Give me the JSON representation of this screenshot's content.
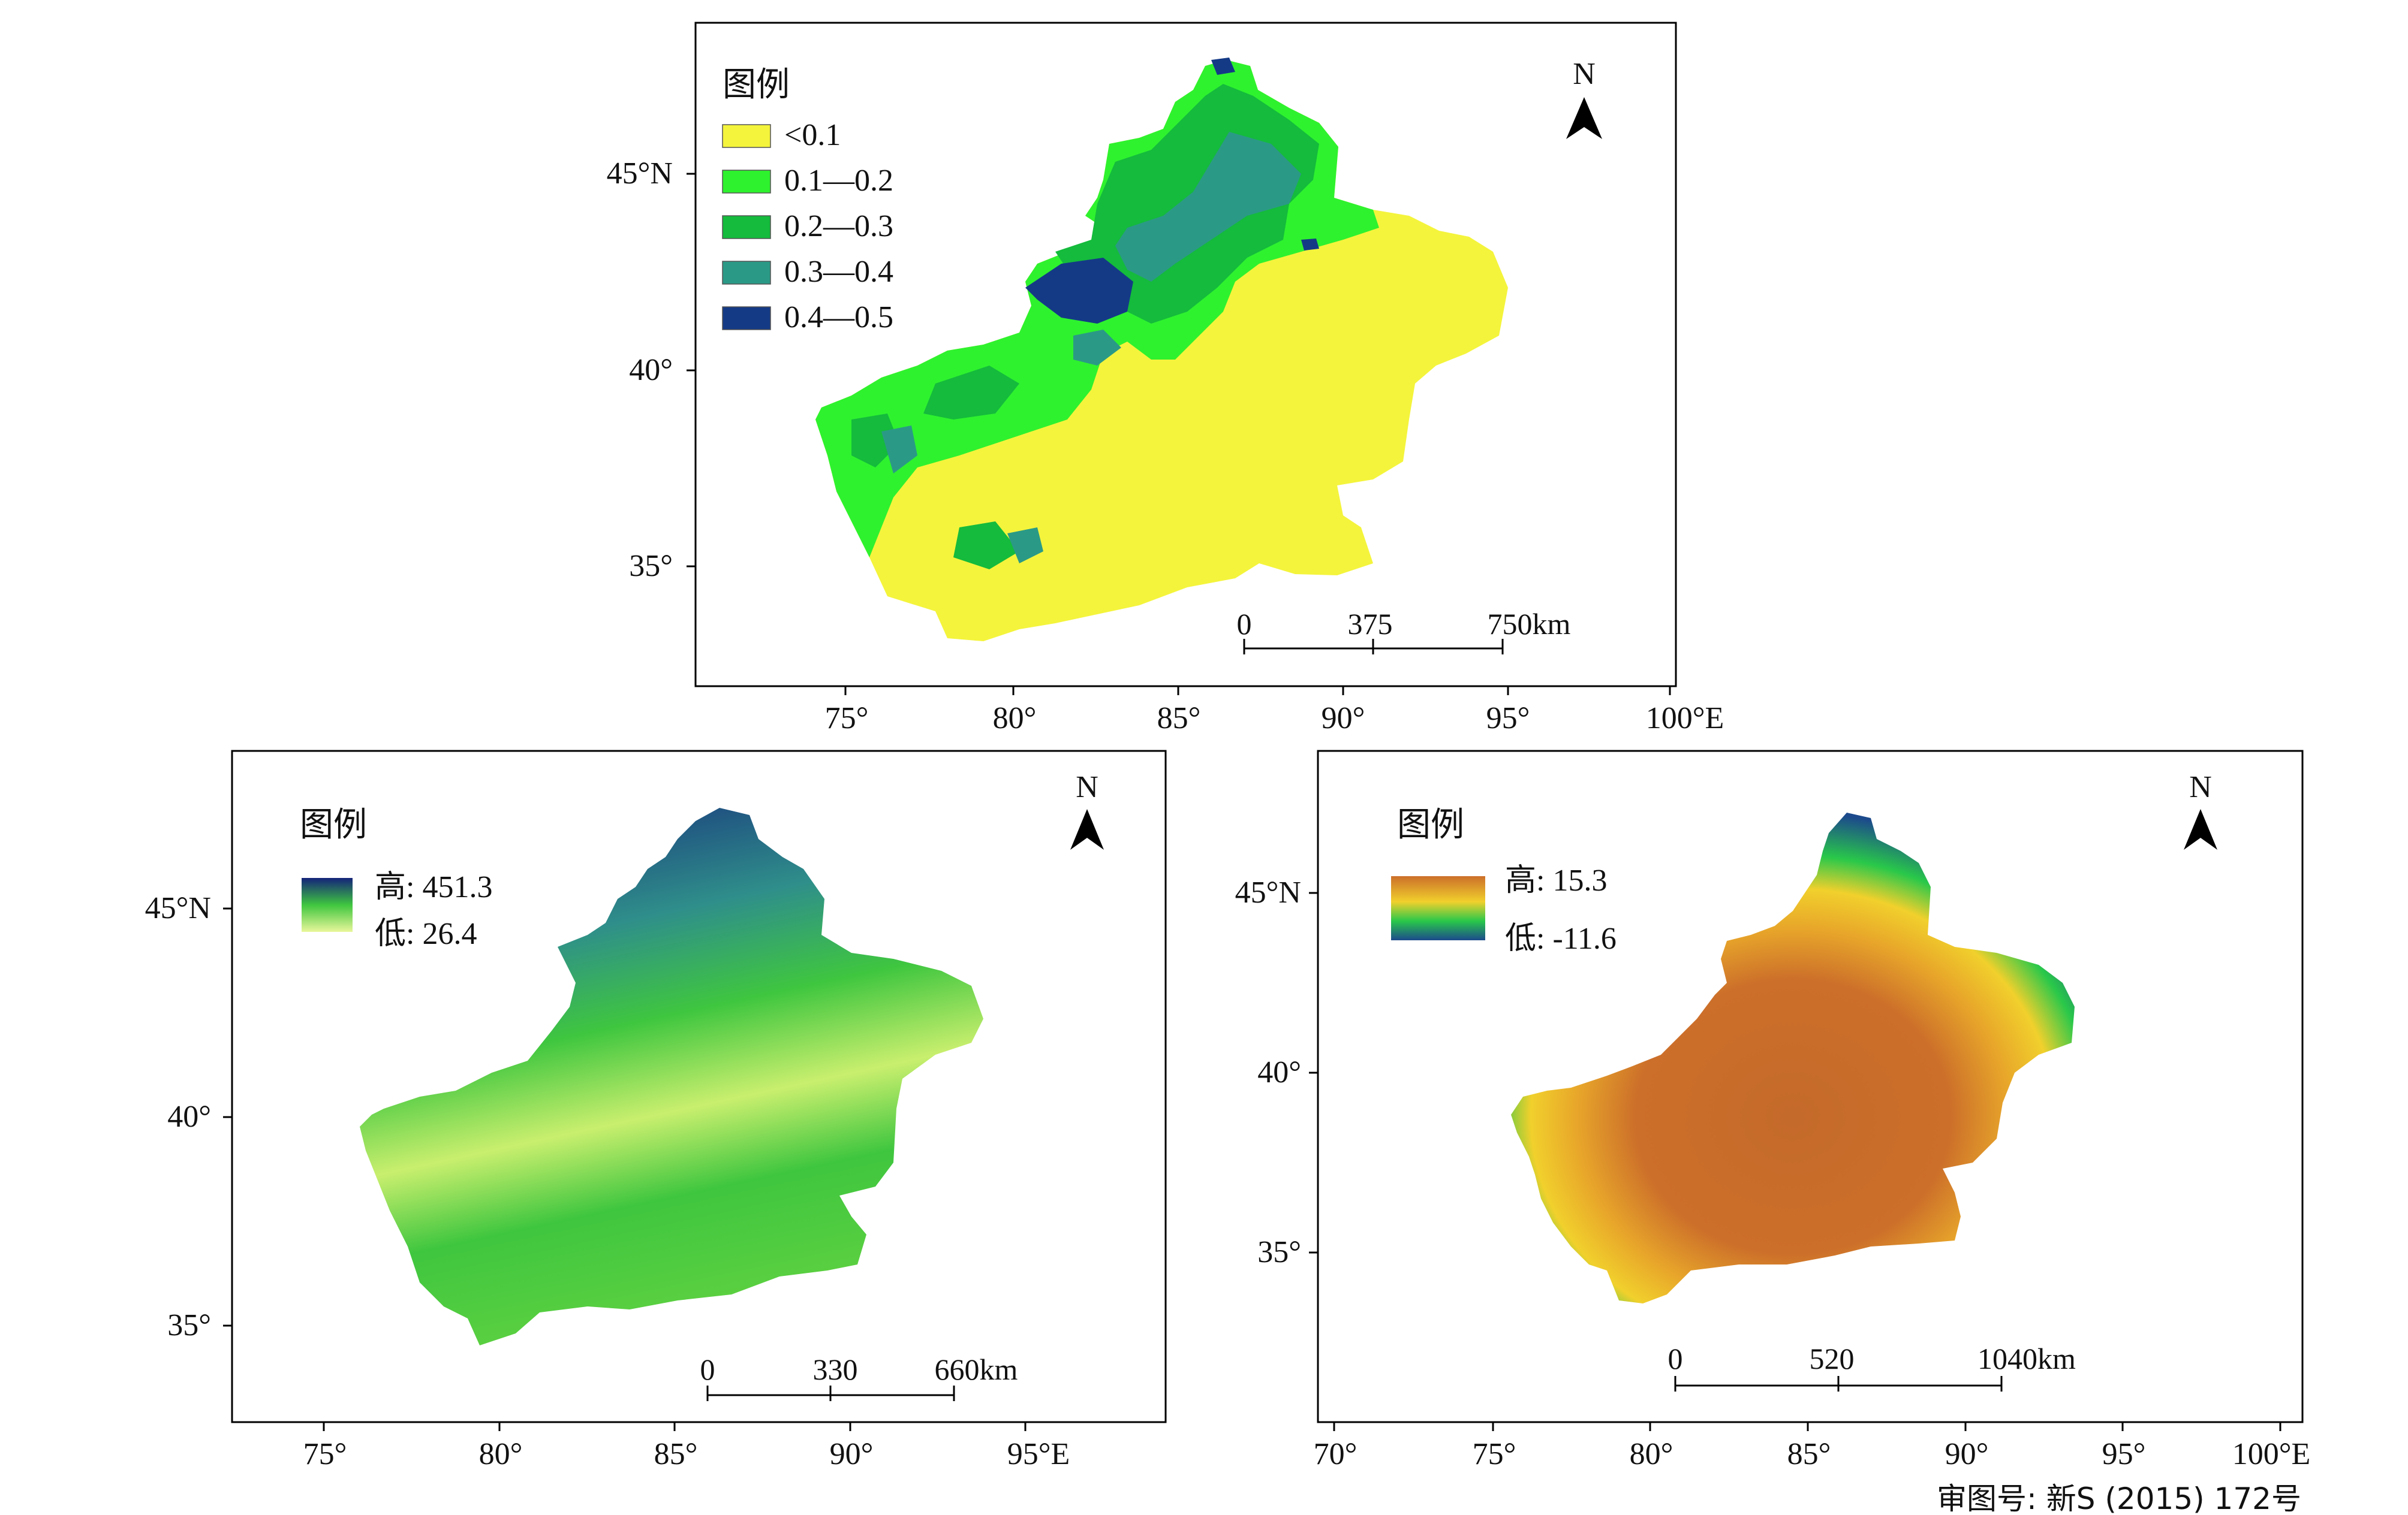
{
  "colors": {
    "m1_lt01": "#f4f43c",
    "m1_0102": "#2ef22e",
    "m1_0203": "#14bb3c",
    "m1_0304": "#2a9a86",
    "m1_0405": "#143a86",
    "m2_high": "#14237a",
    "m2_mid": "#3fc63f",
    "m2_low": "#e9f79a",
    "m3_high": "#cc6f2a",
    "m3_mid1": "#f1d02c",
    "m3_mid2": "#29c84a",
    "m3_low": "#1c4a8c"
  },
  "map1": {
    "legend_title": "图例",
    "legend_items": [
      {
        "label": "<0.1",
        "color_key": "m1_lt01"
      },
      {
        "label": "0.1—0.2",
        "color_key": "m1_0102"
      },
      {
        "label": "0.2—0.3",
        "color_key": "m1_0203"
      },
      {
        "label": "0.3—0.4",
        "color_key": "m1_0304"
      },
      {
        "label": "0.4—0.5",
        "color_key": "m1_0405"
      }
    ],
    "north": "N",
    "lat_labels": [
      "45°N",
      "40°",
      "35°"
    ],
    "lon_labels": [
      "75°",
      "80°",
      "85°",
      "90°",
      "95°",
      "100°E"
    ],
    "scale_labels": [
      "0",
      "375",
      "750km"
    ]
  },
  "map2": {
    "legend_title": "图例",
    "legend_high": "高: 451.3",
    "legend_low": "低: 26.4",
    "north": "N",
    "lat_labels": [
      "45°N",
      "40°",
      "35°"
    ],
    "lon_labels": [
      "75°",
      "80°",
      "85°",
      "90°",
      "95°E"
    ],
    "scale_labels": [
      "0",
      "330",
      "660km"
    ]
  },
  "map3": {
    "legend_title": "图例",
    "legend_high": "高: 15.3",
    "legend_low": "低: -11.6",
    "north": "N",
    "lat_labels": [
      "45°N",
      "40°",
      "35°"
    ],
    "lon_labels": [
      "70°",
      "75°",
      "80°",
      "85°",
      "90°",
      "95°",
      "100°E"
    ],
    "scale_labels": [
      "0",
      "520",
      "1040km"
    ]
  },
  "footer": {
    "approval": "审图号: 新S (2015) 172号"
  }
}
